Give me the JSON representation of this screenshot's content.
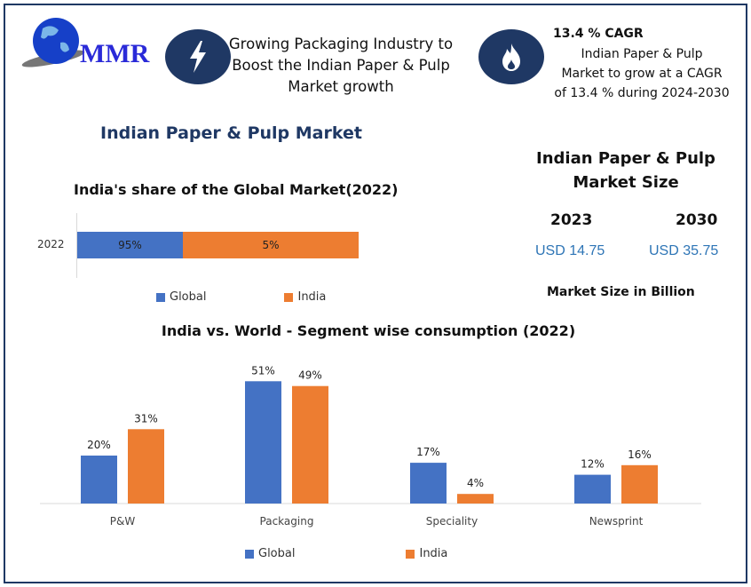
{
  "logo": {
    "text": "MMR"
  },
  "headline": {
    "icon": "lightning-icon",
    "text": [
      "Growing Packaging Industry to",
      "Boost the Indian Paper & Pulp",
      "Market growth"
    ]
  },
  "cagr": {
    "icon": "flame-icon",
    "title": "13.4 % CAGR",
    "text": [
      "Indian Paper & Pulp",
      "Market to grow at a CAGR",
      "of 13.4 % during  2024-2030"
    ]
  },
  "main_title": "Indian Paper & Pulp Market",
  "market_size": {
    "title": [
      "Indian Paper & Pulp",
      "Market Size"
    ],
    "years": [
      "2023",
      "2030"
    ],
    "values": [
      "USD 14.75",
      "USD 35.75"
    ],
    "note": "Market Size in Billion"
  },
  "colors": {
    "global": "#4472c4",
    "india": "#ed7d31",
    "navy": "#1f3864"
  },
  "chart_data": [
    {
      "type": "bar",
      "orientation": "horizontal-stacked",
      "title": "India's share of the Global Market(2022)",
      "categories": [
        "2022"
      ],
      "series": [
        {
          "name": "Global",
          "values": [
            95
          ],
          "label": "95%"
        },
        {
          "name": "India",
          "values": [
            5
          ],
          "label": "5%"
        }
      ],
      "legend": "bottom"
    },
    {
      "type": "bar",
      "title": "India vs. World - Segment wise consumption (2022)",
      "categories": [
        "P&W",
        "Packaging",
        "Speciality",
        "Newsprint"
      ],
      "series": [
        {
          "name": "Global",
          "values": [
            20,
            51,
            17,
            12
          ],
          "labels": [
            "20%",
            "51%",
            "17%",
            "12%"
          ]
        },
        {
          "name": "India",
          "values": [
            31,
            49,
            4,
            16
          ],
          "labels": [
            "31%",
            "49%",
            "4%",
            "16%"
          ]
        }
      ],
      "legend": "bottom",
      "grid": false
    }
  ]
}
